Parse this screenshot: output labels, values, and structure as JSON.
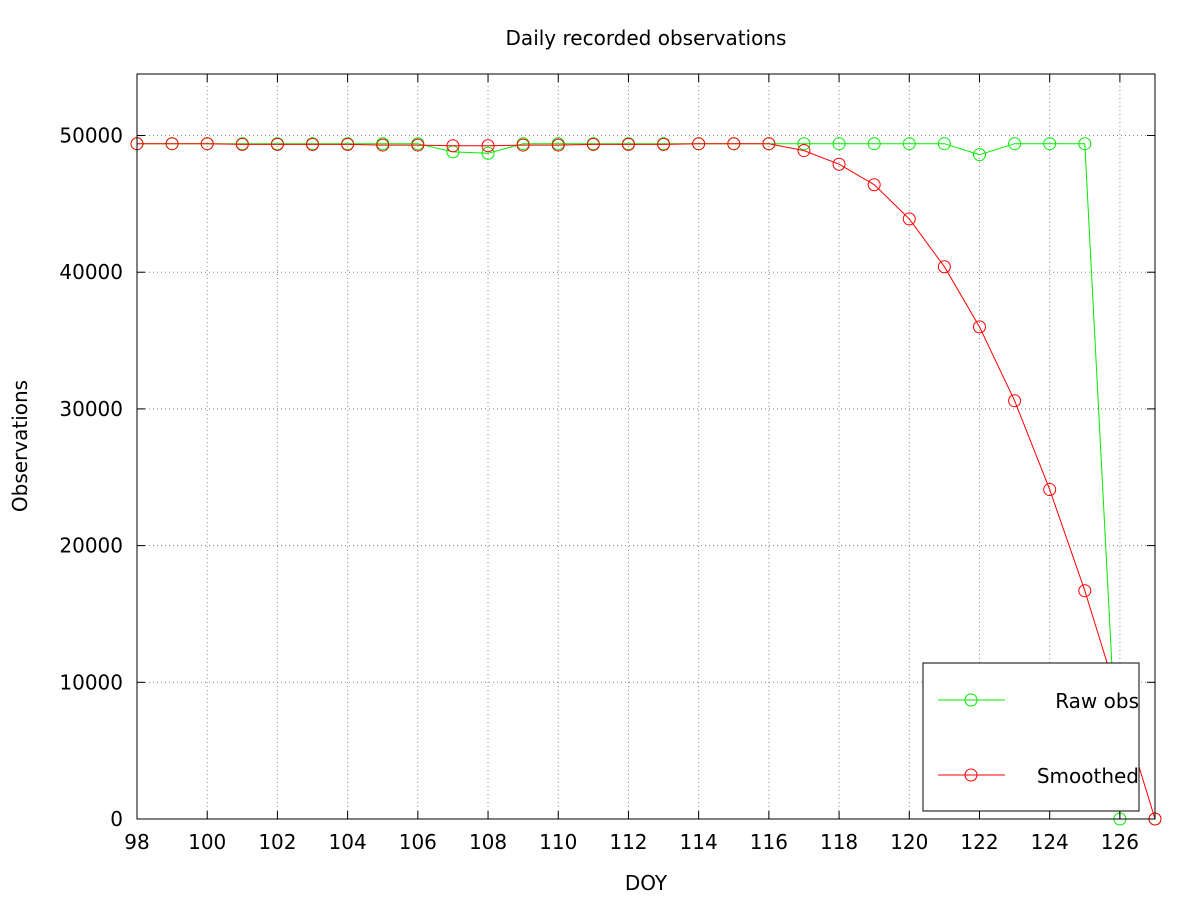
{
  "chart_data": {
    "type": "line",
    "title": "Daily recorded observations",
    "xlabel": "DOY",
    "ylabel": "Observations",
    "xlim": [
      98,
      127
    ],
    "ylim": [
      0,
      54500
    ],
    "x_ticks": [
      98,
      100,
      102,
      104,
      106,
      108,
      110,
      112,
      114,
      116,
      118,
      120,
      122,
      124,
      126
    ],
    "y_ticks": [
      0,
      10000,
      20000,
      30000,
      40000,
      50000
    ],
    "grid": true,
    "legend_position": "bottom-right",
    "series": [
      {
        "name": "Raw obs",
        "color": "#00ee00",
        "marker": "circle",
        "x": [
          98,
          99,
          100,
          101,
          102,
          103,
          104,
          105,
          106,
          107,
          108,
          109,
          110,
          111,
          112,
          113,
          114,
          115,
          116,
          117,
          118,
          119,
          120,
          121,
          122,
          123,
          124,
          125,
          126,
          127
        ],
        "y": [
          49400,
          49400,
          49400,
          49400,
          49400,
          49400,
          49400,
          49400,
          49400,
          48800,
          48700,
          49400,
          49400,
          49400,
          49400,
          49400,
          49400,
          49400,
          49400,
          49400,
          49400,
          49400,
          49400,
          49400,
          48600,
          49400,
          49400,
          49400,
          0,
          0
        ]
      },
      {
        "name": "Smoothed",
        "color": "#ff0000",
        "marker": "circle",
        "x": [
          98,
          99,
          100,
          101,
          102,
          103,
          104,
          105,
          106,
          107,
          108,
          109,
          110,
          111,
          112,
          113,
          114,
          115,
          116,
          117,
          118,
          119,
          120,
          121,
          122,
          123,
          124,
          125,
          126,
          127
        ],
        "y": [
          49400,
          49400,
          49400,
          49350,
          49350,
          49350,
          49350,
          49300,
          49300,
          49250,
          49250,
          49300,
          49300,
          49350,
          49350,
          49350,
          49400,
          49400,
          49400,
          48900,
          47900,
          46400,
          43900,
          40400,
          36000,
          30600,
          24100,
          16700,
          8400,
          0
        ]
      }
    ]
  }
}
